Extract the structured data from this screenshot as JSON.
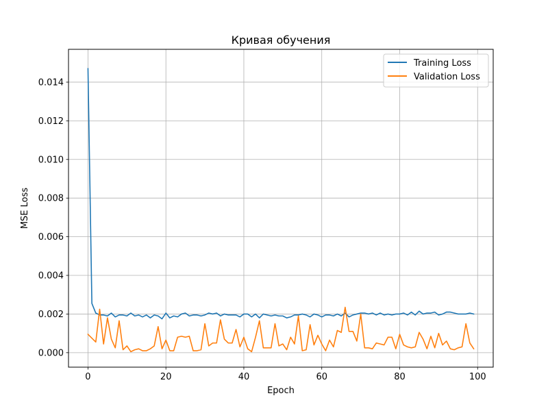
{
  "chart_data": {
    "type": "line",
    "title": "Кривая обучения",
    "xlabel": "Epoch",
    "ylabel": "MSE Loss",
    "xlim": [
      -5,
      104
    ],
    "ylim": [
      -0.00075,
      0.0157
    ],
    "xticks": [
      0,
      20,
      40,
      60,
      80,
      100
    ],
    "xtick_labels": [
      "0",
      "20",
      "40",
      "60",
      "80",
      "100"
    ],
    "yticks": [
      0.0,
      0.002,
      0.004,
      0.006,
      0.008,
      0.01,
      0.012,
      0.014
    ],
    "ytick_labels": [
      "0.000",
      "0.002",
      "0.004",
      "0.006",
      "0.008",
      "0.010",
      "0.012",
      "0.014"
    ],
    "grid": true,
    "legend_position": "top-right",
    "x": [
      0,
      1,
      2,
      3,
      4,
      5,
      6,
      7,
      8,
      9,
      10,
      11,
      12,
      13,
      14,
      15,
      16,
      17,
      18,
      19,
      20,
      21,
      22,
      23,
      24,
      25,
      26,
      27,
      28,
      29,
      30,
      31,
      32,
      33,
      34,
      35,
      36,
      37,
      38,
      39,
      40,
      41,
      42,
      43,
      44,
      45,
      46,
      47,
      48,
      49,
      50,
      51,
      52,
      53,
      54,
      55,
      56,
      57,
      58,
      59,
      60,
      61,
      62,
      63,
      64,
      65,
      66,
      67,
      68,
      69,
      70,
      71,
      72,
      73,
      74,
      75,
      76,
      77,
      78,
      79,
      80,
      81,
      82,
      83,
      84,
      85,
      86,
      87,
      88,
      89,
      90,
      91,
      92,
      93,
      94,
      95,
      96,
      97,
      98,
      99
    ],
    "series": [
      {
        "name": "Training Loss",
        "color": "#1f77b4",
        "values": [
          0.0147,
          0.00255,
          0.00205,
          0.00195,
          0.00195,
          0.0019,
          0.00205,
          0.00185,
          0.00195,
          0.00195,
          0.0019,
          0.00205,
          0.0019,
          0.00195,
          0.00185,
          0.00195,
          0.0018,
          0.00195,
          0.0019,
          0.00175,
          0.00205,
          0.0018,
          0.0019,
          0.00185,
          0.002,
          0.00205,
          0.0019,
          0.00195,
          0.00195,
          0.0019,
          0.00195,
          0.00205,
          0.002,
          0.00205,
          0.0019,
          0.002,
          0.00195,
          0.00195,
          0.00195,
          0.00185,
          0.002,
          0.002,
          0.00185,
          0.002,
          0.0018,
          0.002,
          0.00195,
          0.0019,
          0.00195,
          0.0019,
          0.0019,
          0.0018,
          0.00185,
          0.00195,
          0.00195,
          0.002,
          0.00195,
          0.00185,
          0.002,
          0.00195,
          0.00185,
          0.00195,
          0.00195,
          0.0019,
          0.002,
          0.0019,
          0.00205,
          0.00185,
          0.00195,
          0.002,
          0.00205,
          0.00205,
          0.002,
          0.00205,
          0.00195,
          0.00205,
          0.00195,
          0.002,
          0.00195,
          0.002,
          0.002,
          0.00205,
          0.00195,
          0.0021,
          0.00195,
          0.00215,
          0.002,
          0.00205,
          0.00205,
          0.0021,
          0.00195,
          0.002,
          0.0021,
          0.0021,
          0.00205,
          0.002,
          0.002,
          0.002,
          0.00205,
          0.002
        ]
      },
      {
        "name": "Validation Loss",
        "color": "#ff7f0e",
        "values": [
          0.00095,
          0.00075,
          0.00055,
          0.00225,
          0.00045,
          0.0018,
          0.0007,
          0.00025,
          0.00165,
          0.00015,
          0.00035,
          5e-05,
          0.00015,
          0.0002,
          0.0001,
          0.0001,
          0.0002,
          0.00035,
          0.00135,
          0.0002,
          0.00065,
          0.0001,
          0.0001,
          0.0008,
          0.00085,
          0.0008,
          0.00085,
          0.0001,
          0.0001,
          0.00015,
          0.0015,
          0.00035,
          0.0005,
          0.0005,
          0.0017,
          0.0007,
          0.0005,
          0.0005,
          0.0012,
          0.0003,
          0.0008,
          0.0002,
          5e-05,
          0.0008,
          0.00165,
          0.00025,
          0.00025,
          0.00025,
          0.0015,
          0.00035,
          0.00045,
          0.00015,
          0.0008,
          0.00045,
          0.0019,
          0.0001,
          0.00015,
          0.00145,
          0.0004,
          0.0009,
          0.00045,
          0.0001,
          0.00065,
          0.0003,
          0.00115,
          0.00105,
          0.00235,
          0.0011,
          0.0011,
          0.0006,
          0.002,
          0.00025,
          0.00025,
          0.0002,
          0.0005,
          0.00045,
          0.0004,
          0.0008,
          0.0008,
          0.0002,
          0.00095,
          0.0004,
          0.0003,
          0.00025,
          0.0003,
          0.00105,
          0.0007,
          0.0002,
          0.00085,
          0.00025,
          0.001,
          0.0004,
          0.0006,
          0.0002,
          0.00015,
          0.00025,
          0.0003,
          0.0015,
          0.0005,
          0.0002
        ]
      }
    ]
  }
}
